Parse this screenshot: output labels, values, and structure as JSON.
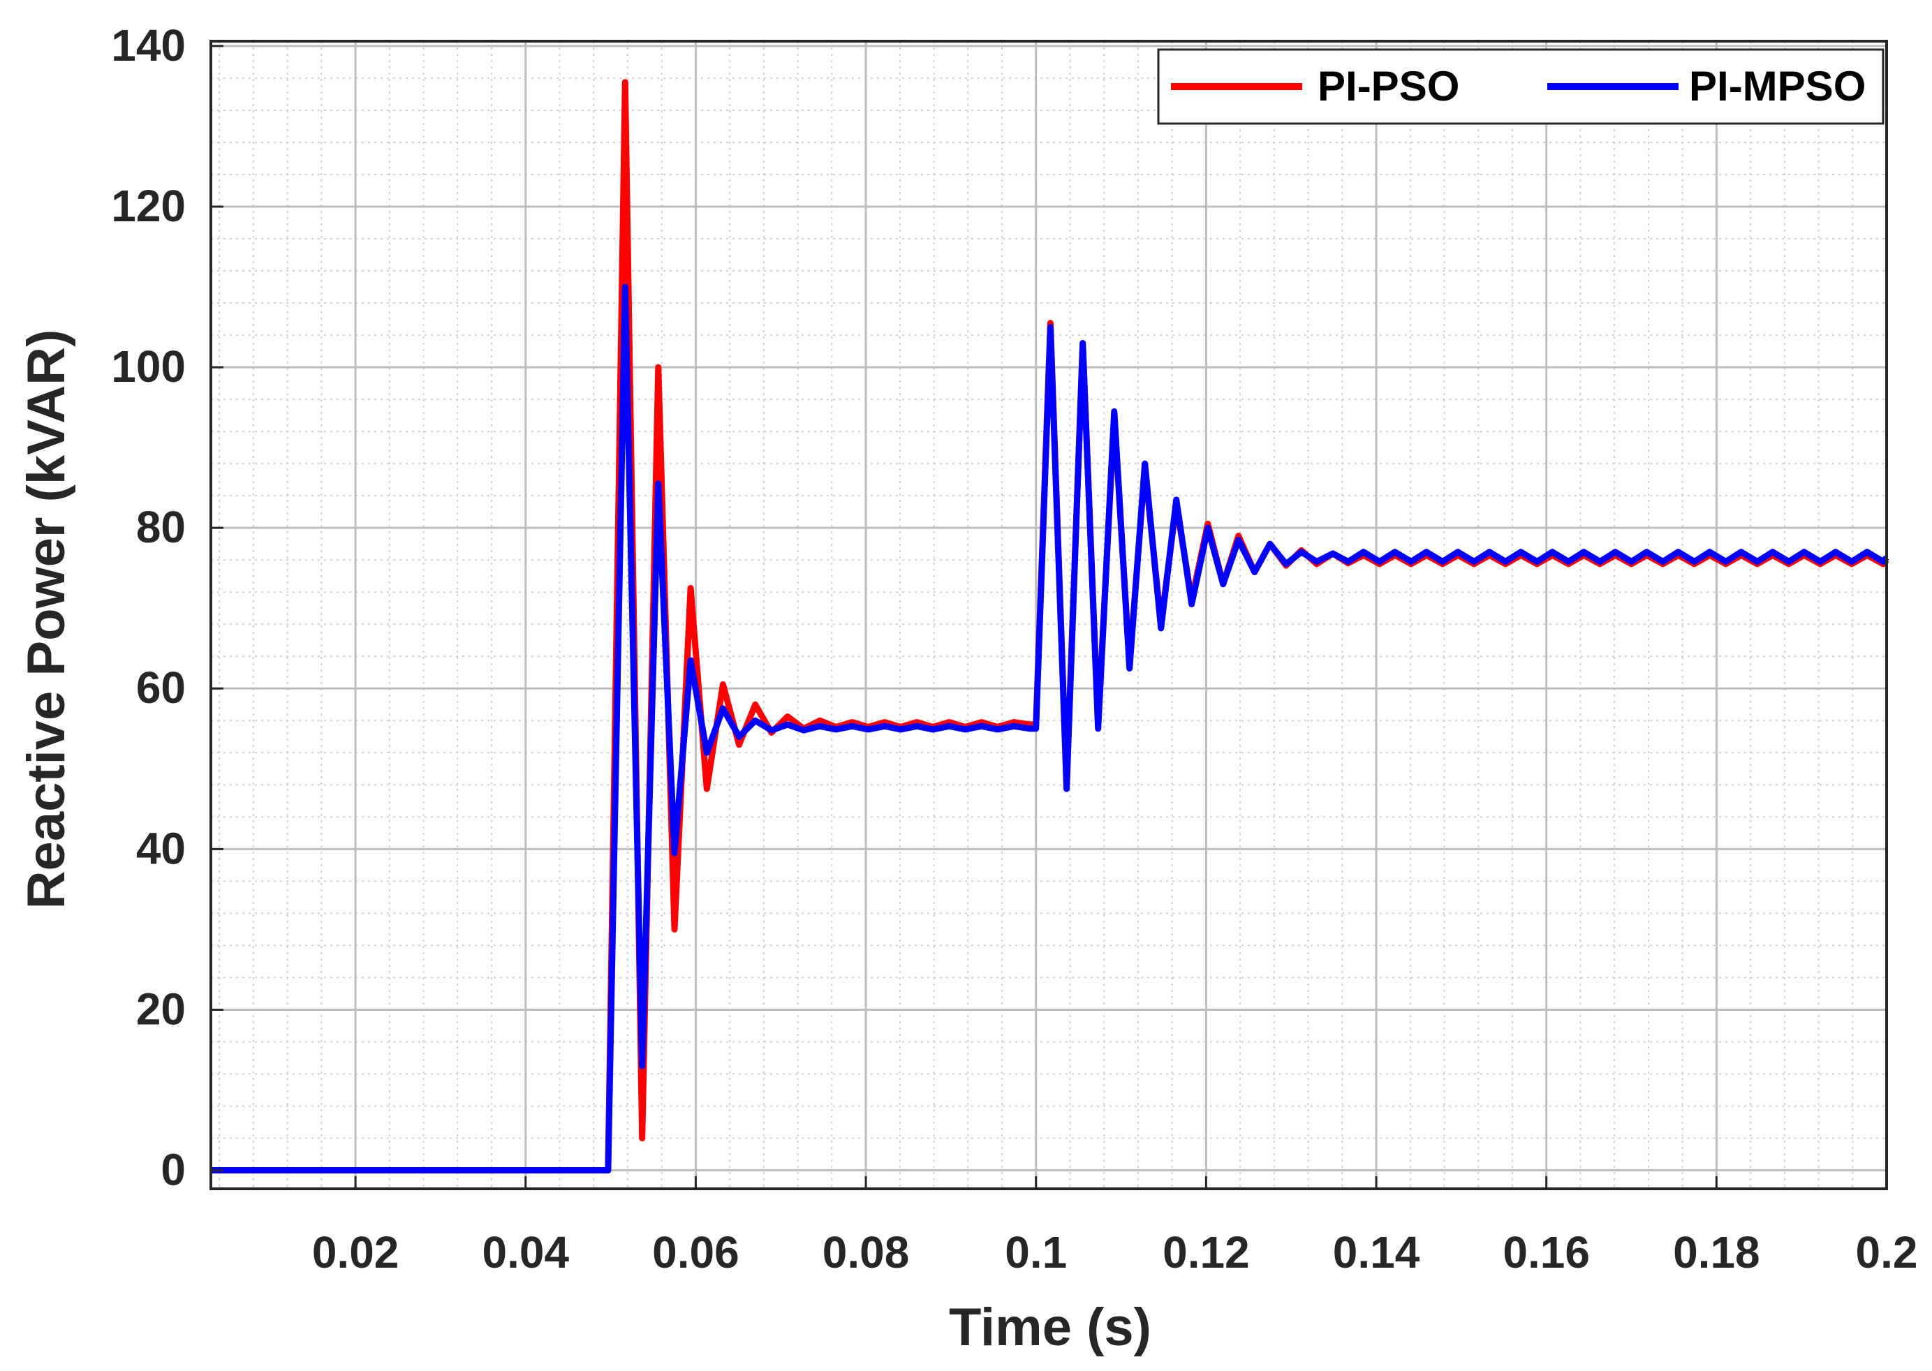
{
  "chart_data": {
    "type": "line",
    "x_label": "Time (s)",
    "y_label": "Reactive Power (kVAR)",
    "x": [
      0.003,
      0.0497,
      0.0517,
      0.0537,
      0.0556,
      0.0575,
      0.0594,
      0.0613,
      0.0632,
      0.0651,
      0.067,
      0.0689,
      0.0708,
      0.0727,
      0.0746,
      0.0765,
      0.0784,
      0.0803,
      0.0822,
      0.0841,
      0.086,
      0.0879,
      0.0898,
      0.0917,
      0.0936,
      0.0955,
      0.0974,
      0.0993,
      0.1,
      0.1017,
      0.1036,
      0.1055,
      0.1073,
      0.1092,
      0.111,
      0.1128,
      0.1147,
      0.1165,
      0.1183,
      0.1202,
      0.122,
      0.1238,
      0.1257,
      0.1275,
      0.1294,
      0.1312,
      0.133,
      0.1349,
      0.1367,
      0.1385,
      0.1404,
      0.1422,
      0.1441,
      0.1459,
      0.1478,
      0.1496,
      0.1515,
      0.1533,
      0.1552,
      0.157,
      0.1589,
      0.1607,
      0.1626,
      0.1644,
      0.1663,
      0.1681,
      0.17,
      0.1718,
      0.1737,
      0.1755,
      0.1774,
      0.1792,
      0.1811,
      0.1829,
      0.1848,
      0.1866,
      0.1885,
      0.1903,
      0.1922,
      0.194,
      0.1959,
      0.1977,
      0.1996,
      0.2
    ],
    "series": [
      {
        "name": "PI-PSO",
        "color": "#ff0000",
        "values": [
          0,
          0,
          135.5,
          4,
          100,
          30,
          72.5,
          47.5,
          60.5,
          53,
          58,
          54.5,
          56.5,
          55,
          56,
          55.2,
          55.8,
          55.2,
          55.8,
          55.2,
          55.8,
          55.2,
          55.8,
          55.2,
          55.8,
          55.2,
          55.8,
          55.5,
          55.5,
          105.5,
          48,
          103,
          55.5,
          94,
          63,
          87.5,
          68,
          83,
          71,
          80.5,
          73,
          79,
          74.5,
          78,
          75.3,
          77.2,
          75.5,
          76.8,
          75.6,
          76.6,
          75.5,
          76.6,
          75.5,
          76.6,
          75.5,
          76.6,
          75.5,
          76.6,
          75.5,
          76.6,
          75.5,
          76.6,
          75.5,
          76.6,
          75.5,
          76.6,
          75.5,
          76.6,
          75.5,
          76.6,
          75.5,
          76.6,
          75.5,
          76.6,
          75.5,
          76.6,
          75.5,
          76.6,
          75.5,
          76.6,
          75.5,
          76.6,
          75.5,
          76
        ]
      },
      {
        "name": "PI-MPSO",
        "color": "#0000ff",
        "values": [
          0,
          0,
          110,
          13,
          85.5,
          39.5,
          63.5,
          52,
          57.5,
          54,
          56,
          54.8,
          55.5,
          54.8,
          55.3,
          54.9,
          55.3,
          54.9,
          55.3,
          54.9,
          55.3,
          54.9,
          55.3,
          54.9,
          55.3,
          54.9,
          55.3,
          55,
          55,
          105,
          47.5,
          103,
          55,
          94.5,
          62.5,
          88,
          67.5,
          83.5,
          70.5,
          80,
          73,
          78.5,
          74.5,
          78,
          75.5,
          77,
          75.8,
          76.8,
          75.8,
          77,
          75.8,
          77,
          75.8,
          77,
          75.8,
          77,
          75.8,
          77,
          75.8,
          77,
          75.8,
          77,
          75.8,
          77,
          75.8,
          77,
          75.8,
          77,
          75.8,
          77,
          75.8,
          77,
          75.8,
          77,
          75.8,
          77,
          75.8,
          77,
          75.8,
          77,
          75.8,
          77,
          75.8,
          76.3
        ]
      }
    ],
    "xlim": [
      0.003,
      0.2
    ],
    "ylim": [
      -2.3,
      140.6
    ],
    "xticks": [
      0.02,
      0.04,
      0.06,
      0.08,
      0.1,
      0.12,
      0.14,
      0.16,
      0.18,
      0.2
    ],
    "yticks": [
      0,
      20,
      40,
      60,
      80,
      100,
      120,
      140
    ],
    "grid": true,
    "minor_grid": true,
    "legend": "upper right"
  }
}
